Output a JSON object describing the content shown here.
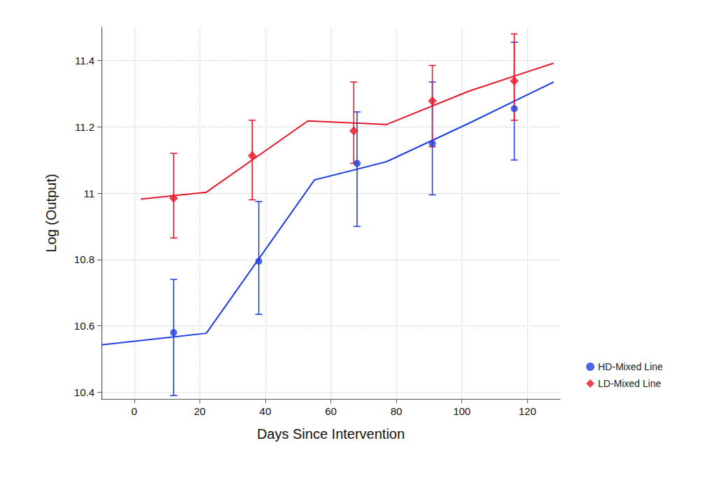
{
  "chart_data": {
    "type": "scatter",
    "x_label": "Days Since Intervention",
    "y_label": "Log (Output)",
    "xlim": [
      -10,
      130
    ],
    "xticks": [
      0,
      20,
      40,
      60,
      80,
      100,
      120
    ],
    "ylim": [
      10.38,
      11.5
    ],
    "yticks": [
      10.4,
      10.6,
      10.8,
      11,
      11.2,
      11.4
    ],
    "grid": true,
    "legend": "right",
    "series": [
      {
        "name": "HD-Mixed Line",
        "color": "#1f3fe0",
        "marker": "circle",
        "line_style": "solid",
        "x": [
          12,
          38,
          68,
          91,
          116
        ],
        "values": [
          10.58,
          10.795,
          11.09,
          11.15,
          11.255
        ],
        "error_low": [
          10.39,
          10.635,
          10.9,
          10.995,
          11.1
        ],
        "error_high": [
          10.74,
          10.975,
          11.245,
          11.335,
          11.455
        ],
        "fit": {
          "x": [
            -10,
            22,
            55,
            77,
            102,
            128
          ],
          "values": [
            10.543,
            10.578,
            11.04,
            11.095,
            11.21,
            11.335
          ]
        }
      },
      {
        "name": "LD-Mixed Line",
        "color": "#e8162b",
        "marker": "diamond",
        "line_style": "solid",
        "x": [
          12,
          36,
          67,
          91,
          116
        ],
        "values": [
          10.985,
          11.113,
          11.188,
          11.278,
          11.338
        ],
        "error_low": [
          10.865,
          10.98,
          11.09,
          11.14,
          11.22
        ],
        "error_high": [
          11.12,
          11.22,
          11.335,
          11.385,
          11.48
        ],
        "fit": {
          "x": [
            2,
            22,
            53,
            77,
            102,
            128
          ],
          "values": [
            10.982,
            11.003,
            11.218,
            11.207,
            11.307,
            11.392
          ]
        }
      }
    ]
  }
}
